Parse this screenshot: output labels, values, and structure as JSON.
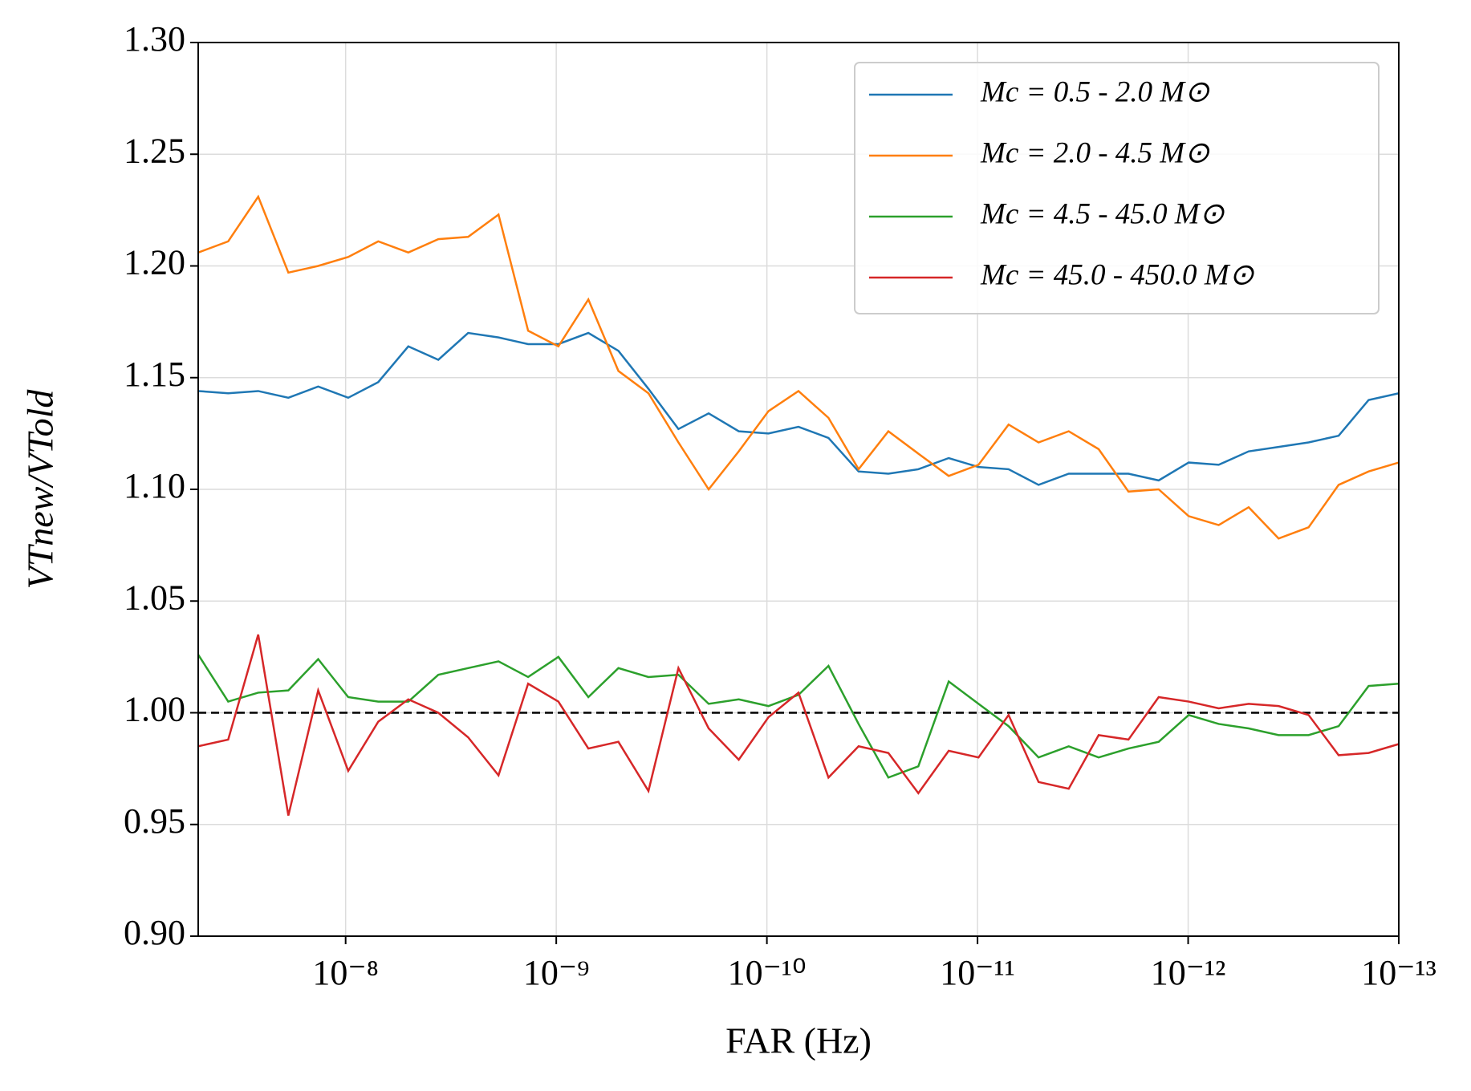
{
  "chart_data": {
    "type": "line",
    "xlabel": "FAR (Hz)",
    "ylabel": "VTnew/VTold",
    "xscale": "log",
    "x": [
      5.01e-08,
      3.61e-08,
      2.6e-08,
      1.87e-08,
      1.35e-08,
      9.72e-09,
      7e-09,
      5.04e-09,
      3.63e-09,
      2.62e-09,
      1.88e-09,
      1.36e-09,
      9.77e-10,
      7.04e-10,
      5.07e-10,
      3.65e-10,
      2.63e-10,
      1.89e-10,
      1.36e-10,
      9.83e-11,
      7.08e-11,
      5.1e-11,
      3.67e-11,
      2.65e-11,
      1.91e-11,
      1.37e-11,
      9.89e-12,
      7.12e-12,
      5.13e-12,
      3.69e-12,
      2.66e-12,
      1.92e-12,
      1.38e-12,
      9.94e-13,
      7.16e-13,
      5.16e-13,
      3.72e-13,
      2.68e-13,
      1.93e-13,
      1.39e-13,
      1e-13
    ],
    "series": [
      {
        "name": "Mc = 0.5 - 2.0 M⊙",
        "color": "#1f77b4",
        "values": [
          1.144,
          1.143,
          1.144,
          1.141,
          1.146,
          1.141,
          1.148,
          1.164,
          1.158,
          1.17,
          1.168,
          1.165,
          1.165,
          1.17,
          1.162,
          1.145,
          1.127,
          1.134,
          1.126,
          1.125,
          1.128,
          1.123,
          1.108,
          1.107,
          1.109,
          1.114,
          1.11,
          1.109,
          1.102,
          1.107,
          1.107,
          1.107,
          1.104,
          1.112,
          1.111,
          1.117,
          1.119,
          1.121,
          1.124,
          1.14,
          1.143
        ]
      },
      {
        "name": "Mc = 2.0 - 4.5 M⊙",
        "color": "#ff7f0e",
        "values": [
          1.206,
          1.211,
          1.231,
          1.197,
          1.2,
          1.204,
          1.211,
          1.206,
          1.212,
          1.213,
          1.223,
          1.171,
          1.164,
          1.185,
          1.153,
          1.143,
          1.121,
          1.1,
          1.117,
          1.135,
          1.144,
          1.132,
          1.109,
          1.126,
          1.116,
          1.106,
          1.111,
          1.129,
          1.121,
          1.126,
          1.118,
          1.099,
          1.1,
          1.088,
          1.084,
          1.092,
          1.078,
          1.083,
          1.102,
          1.108,
          1.112
        ]
      },
      {
        "name": "Mc = 4.5 - 45.0 M⊙",
        "color": "#2ca02c",
        "values": [
          1.026,
          1.005,
          1.009,
          1.01,
          1.024,
          1.007,
          1.005,
          1.005,
          1.017,
          1.02,
          1.023,
          1.016,
          1.025,
          1.007,
          1.02,
          1.016,
          1.017,
          1.004,
          1.006,
          1.003,
          1.008,
          1.021,
          0.995,
          0.971,
          0.976,
          1.014,
          1.004,
          0.994,
          0.98,
          0.985,
          0.98,
          0.984,
          0.987,
          0.999,
          0.995,
          0.993,
          0.99,
          0.99,
          0.994,
          1.012,
          1.013
        ]
      },
      {
        "name": "Mc = 45.0 - 450.0 M⊙",
        "color": "#d62728",
        "values": [
          0.985,
          0.988,
          1.035,
          0.954,
          1.01,
          0.974,
          0.996,
          1.006,
          1.0,
          0.989,
          0.972,
          1.013,
          1.005,
          0.984,
          0.987,
          0.965,
          1.02,
          0.993,
          0.979,
          0.998,
          1.009,
          0.971,
          0.985,
          0.982,
          0.964,
          0.983,
          0.98,
          0.999,
          0.969,
          0.966,
          0.99,
          0.988,
          1.007,
          1.005,
          1.002,
          1.004,
          1.003,
          0.999,
          0.981,
          0.982,
          0.986
        ]
      }
    ],
    "reference_line": 1.0,
    "xlim": [
      5.01e-08,
      1e-13
    ],
    "xticks": [
      {
        "value": 1e-08,
        "label": "10⁻⁸"
      },
      {
        "value": 1e-09,
        "label": "10⁻⁹"
      },
      {
        "value": 1e-10,
        "label": "10⁻¹⁰"
      },
      {
        "value": 1e-11,
        "label": "10⁻¹¹"
      },
      {
        "value": 1e-12,
        "label": "10⁻¹²"
      },
      {
        "value": 1e-13,
        "label": "10⁻¹³"
      }
    ],
    "ylim": [
      0.9,
      1.3
    ],
    "yticks": [
      {
        "value": 0.9,
        "label": "0.90"
      },
      0.95,
      {
        "value": 1.0,
        "label": "1.00"
      },
      1.05,
      {
        "value": 1.1,
        "label": "1.10"
      },
      1.15,
      {
        "value": 1.2,
        "label": "1.20"
      },
      1.25,
      {
        "value": 1.3,
        "label": "1.30"
      }
    ],
    "grid": true,
    "legend": "upper right"
  }
}
